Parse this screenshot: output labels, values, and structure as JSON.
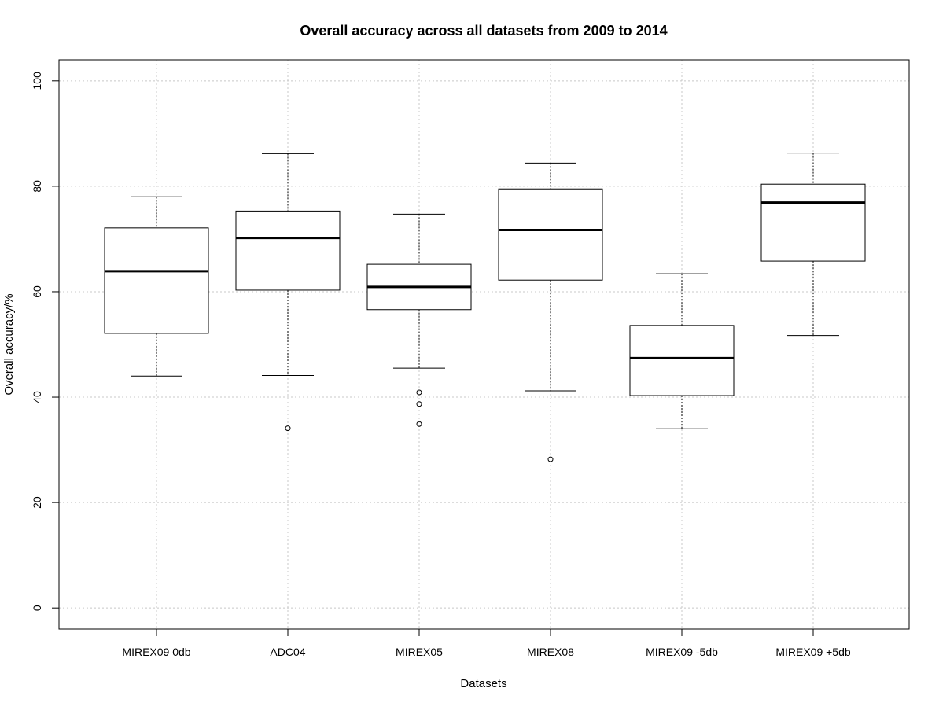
{
  "chart_data": {
    "type": "boxplot",
    "title": "Overall accuracy across all datasets from 2009 to 2014",
    "xlabel": "Datasets",
    "ylabel": "Overall accuracy/%",
    "ylim": [
      -4,
      104
    ],
    "yticks": [
      "0",
      "20",
      "40",
      "60",
      "80",
      "100"
    ],
    "grid": true,
    "categories": [
      "MIREX09 0db",
      "ADC04",
      "MIREX05",
      "MIREX08",
      "MIREX09 -5db",
      "MIREX09 +5db"
    ],
    "boxes": [
      {
        "whisker_low": 44.0,
        "q1": 52.1,
        "median": 63.9,
        "q3": 72.1,
        "whisker_high": 78.0,
        "outliers": []
      },
      {
        "whisker_low": 44.1,
        "q1": 60.3,
        "median": 70.2,
        "q3": 75.3,
        "whisker_high": 86.2,
        "outliers": [
          34.1
        ]
      },
      {
        "whisker_low": 45.5,
        "q1": 56.6,
        "median": 60.9,
        "q3": 65.2,
        "whisker_high": 74.7,
        "outliers": [
          40.9,
          38.7,
          34.9
        ]
      },
      {
        "whisker_low": 41.2,
        "q1": 62.2,
        "median": 71.7,
        "q3": 79.5,
        "whisker_high": 84.4,
        "outliers": [
          28.2
        ]
      },
      {
        "whisker_low": 34.0,
        "q1": 40.3,
        "median": 47.4,
        "q3": 53.6,
        "whisker_high": 63.4,
        "outliers": []
      },
      {
        "whisker_low": 51.7,
        "q1": 65.8,
        "median": 76.9,
        "q3": 80.4,
        "whisker_high": 86.3,
        "outliers": []
      }
    ]
  }
}
